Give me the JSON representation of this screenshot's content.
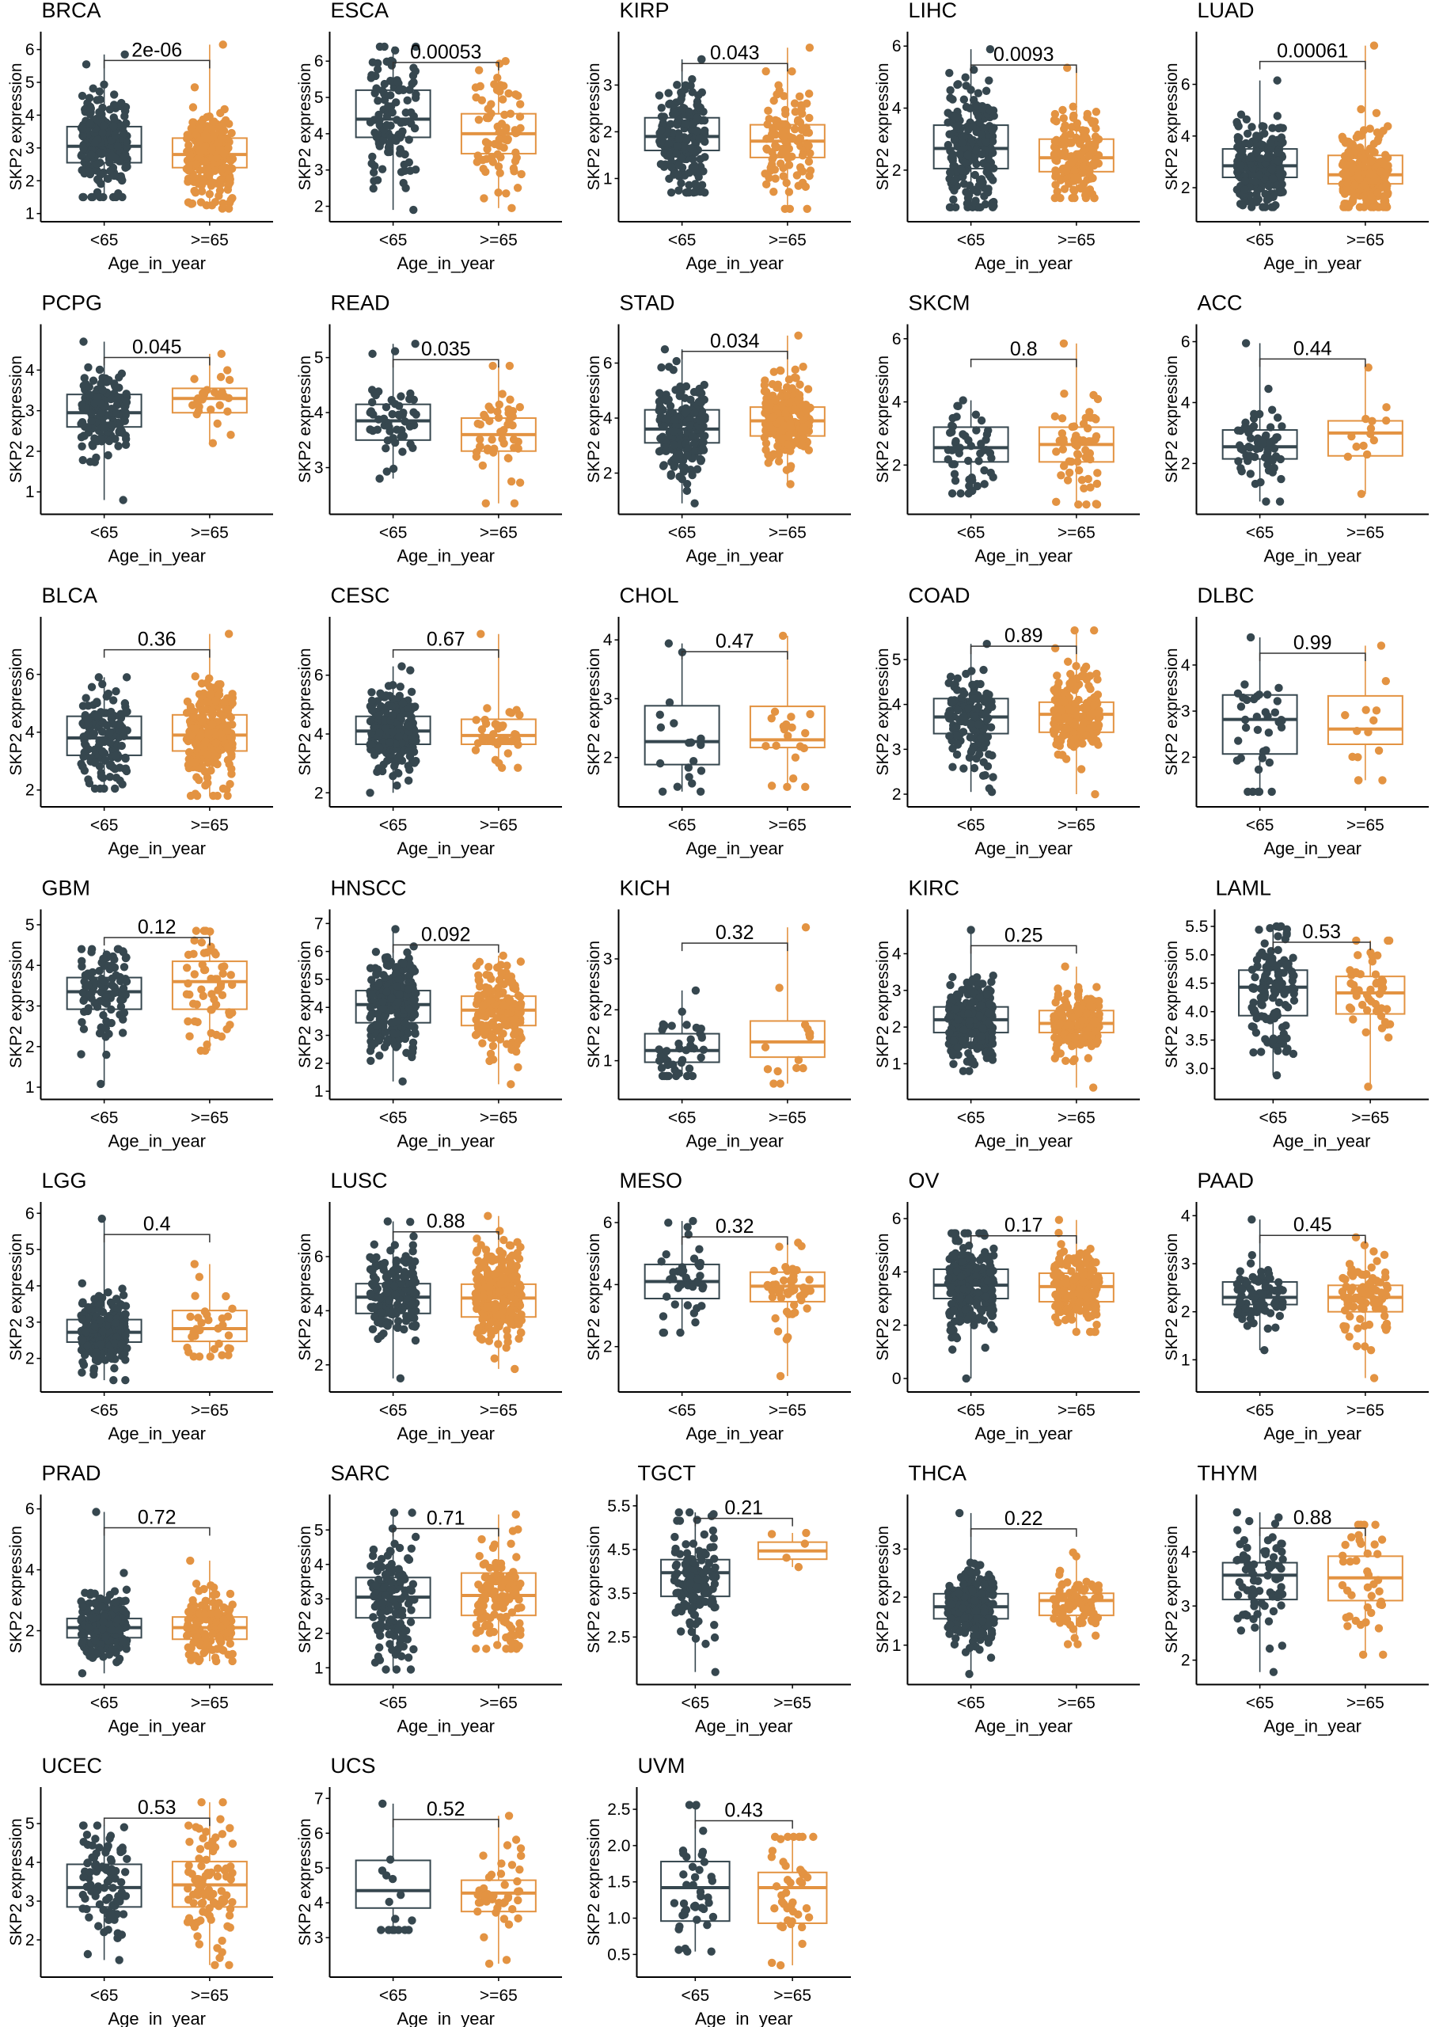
{
  "figure": {
    "ylabel": "SKP2 expression",
    "xlabel": "Age_in_year",
    "groups": [
      "<65",
      ">=65"
    ],
    "colors": {
      "<65": "#36474f",
      ">=65": "#e39342"
    }
  },
  "chart_data": [
    {
      "type": "box",
      "title": "BRCA",
      "pvalue": "2e-06",
      "ylim": [
        1,
        6.2
      ],
      "ticks": [
        1,
        2,
        3,
        4,
        5,
        6
      ],
      "groups": [
        {
          "name": "<65",
          "n": 600,
          "q1": 2.55,
          "median": 3.05,
          "q3": 3.65,
          "lo": 1.5,
          "hi": 5.85
        },
        {
          "name": ">=65",
          "n": 300,
          "q1": 2.4,
          "median": 2.8,
          "q3": 3.3,
          "lo": 1.15,
          "hi": 6.15
        }
      ]
    },
    {
      "type": "box",
      "title": "ESCA",
      "pvalue": "0.00053",
      "ylim": [
        1.8,
        6.5
      ],
      "ticks": [
        2,
        3,
        4,
        5,
        6
      ],
      "groups": [
        {
          "name": "<65",
          "n": 110,
          "q1": 3.9,
          "median": 4.4,
          "q3": 5.2,
          "lo": 1.9,
          "hi": 6.4
        },
        {
          "name": ">=65",
          "n": 70,
          "q1": 3.45,
          "median": 4.0,
          "q3": 4.55,
          "lo": 1.95,
          "hi": 6.0
        }
      ]
    },
    {
      "type": "box",
      "title": "KIRP",
      "pvalue": "0.043",
      "ylim": [
        0.25,
        3.9
      ],
      "ticks": [
        1,
        2,
        3
      ],
      "groups": [
        {
          "name": "<65",
          "n": 200,
          "q1": 1.6,
          "median": 1.9,
          "q3": 2.3,
          "lo": 0.7,
          "hi": 3.55
        },
        {
          "name": ">=65",
          "n": 110,
          "q1": 1.45,
          "median": 1.8,
          "q3": 2.15,
          "lo": 0.35,
          "hi": 3.8
        }
      ]
    },
    {
      "type": "box",
      "title": "LIHC",
      "pvalue": "0.0093",
      "ylim": [
        0.6,
        6.1
      ],
      "ticks": [
        2,
        4,
        6
      ],
      "groups": [
        {
          "name": "<65",
          "n": 230,
          "q1": 2.05,
          "median": 2.7,
          "q3": 3.45,
          "lo": 0.8,
          "hi": 5.9
        },
        {
          "name": ">=65",
          "n": 140,
          "q1": 1.95,
          "median": 2.4,
          "q3": 3.0,
          "lo": 1.1,
          "hi": 5.3
        }
      ]
    },
    {
      "type": "box",
      "title": "LUAD",
      "pvalue": "0.00061",
      "ylim": [
        1.0,
        7.6
      ],
      "ticks": [
        2,
        4,
        6
      ],
      "groups": [
        {
          "name": "<65",
          "n": 230,
          "q1": 2.4,
          "median": 2.85,
          "q3": 3.5,
          "lo": 1.25,
          "hi": 6.15
        },
        {
          "name": ">=65",
          "n": 280,
          "q1": 2.15,
          "median": 2.5,
          "q3": 3.25,
          "lo": 1.25,
          "hi": 7.5
        }
      ]
    },
    {
      "type": "box",
      "title": "PCPG",
      "pvalue": "0.045",
      "ylim": [
        0.65,
        4.85
      ],
      "ticks": [
        1,
        2,
        3,
        4
      ],
      "groups": [
        {
          "name": "<65",
          "n": 150,
          "q1": 2.6,
          "median": 2.95,
          "q3": 3.4,
          "lo": 0.8,
          "hi": 4.7
        },
        {
          "name": ">=65",
          "n": 25,
          "q1": 2.95,
          "median": 3.3,
          "q3": 3.55,
          "lo": 2.2,
          "hi": 4.4
        }
      ]
    },
    {
      "type": "box",
      "title": "READ",
      "pvalue": "0.035",
      "ylim": [
        2.3,
        5.4
      ],
      "ticks": [
        3,
        4,
        5
      ],
      "groups": [
        {
          "name": "<65",
          "n": 50,
          "q1": 3.5,
          "median": 3.85,
          "q3": 4.15,
          "lo": 2.8,
          "hi": 5.25
        },
        {
          "name": ">=65",
          "n": 45,
          "q1": 3.3,
          "median": 3.6,
          "q3": 3.9,
          "lo": 2.35,
          "hi": 4.85
        }
      ]
    },
    {
      "type": "box",
      "title": "STAD",
      "pvalue": "0.034",
      "ylim": [
        0.8,
        7.0
      ],
      "ticks": [
        2,
        4,
        6
      ],
      "groups": [
        {
          "name": "<65",
          "n": 200,
          "q1": 3.1,
          "median": 3.6,
          "q3": 4.3,
          "lo": 0.9,
          "hi": 6.5
        },
        {
          "name": ">=65",
          "n": 230,
          "q1": 3.35,
          "median": 3.9,
          "q3": 4.4,
          "lo": 1.6,
          "hi": 7.0
        }
      ]
    },
    {
      "type": "box",
      "title": "SKCM",
      "pvalue": "0.8",
      "ylim": [
        0.7,
        6.1
      ],
      "ticks": [
        2,
        4,
        6
      ],
      "groups": [
        {
          "name": "<65",
          "n": 50,
          "q1": 2.1,
          "median": 2.55,
          "q3": 3.2,
          "lo": 1.1,
          "hi": 4.05
        },
        {
          "name": ">=65",
          "n": 55,
          "q1": 2.1,
          "median": 2.65,
          "q3": 3.2,
          "lo": 0.75,
          "hi": 5.85
        }
      ]
    },
    {
      "type": "box",
      "title": "ACC",
      "pvalue": "0.44",
      "ylim": [
        0.6,
        6.2
      ],
      "ticks": [
        2,
        4,
        6
      ],
      "groups": [
        {
          "name": "<65",
          "n": 65,
          "q1": 2.15,
          "median": 2.55,
          "q3": 3.1,
          "lo": 0.75,
          "hi": 5.95
        },
        {
          "name": ">=65",
          "n": 12,
          "q1": 2.25,
          "median": 3.0,
          "q3": 3.4,
          "lo": 1.0,
          "hi": 5.15
        }
      ]
    },
    {
      "type": "box",
      "title": "BLCA",
      "pvalue": "0.36",
      "ylim": [
        1.7,
        7.6
      ],
      "ticks": [
        2,
        4,
        6
      ],
      "groups": [
        {
          "name": "<65",
          "n": 140,
          "q1": 3.2,
          "median": 3.8,
          "q3": 4.55,
          "lo": 2.05,
          "hi": 5.9
        },
        {
          "name": ">=65",
          "n": 250,
          "q1": 3.35,
          "median": 3.9,
          "q3": 4.6,
          "lo": 1.8,
          "hi": 7.4
        }
      ]
    },
    {
      "type": "box",
      "title": "CESC",
      "pvalue": "0.67",
      "ylim": [
        1.8,
        7.6
      ],
      "ticks": [
        2,
        4,
        6
      ],
      "groups": [
        {
          "name": "<65",
          "n": 250,
          "q1": 3.65,
          "median": 4.1,
          "q3": 4.6,
          "lo": 2.0,
          "hi": 6.3
        },
        {
          "name": ">=65",
          "n": 35,
          "q1": 3.65,
          "median": 3.95,
          "q3": 4.5,
          "lo": 2.85,
          "hi": 7.4
        }
      ]
    },
    {
      "type": "box",
      "title": "CHOL",
      "pvalue": "0.47",
      "ylim": [
        1.3,
        4.2
      ],
      "ticks": [
        2,
        3,
        4
      ],
      "groups": [
        {
          "name": "<65",
          "n": 17,
          "q1": 1.88,
          "median": 2.27,
          "q3": 2.88,
          "lo": 1.42,
          "hi": 3.94
        },
        {
          "name": ">=65",
          "n": 18,
          "q1": 2.17,
          "median": 2.3,
          "q3": 2.87,
          "lo": 1.5,
          "hi": 4.07
        }
      ]
    },
    {
      "type": "box",
      "title": "COAD",
      "pvalue": "0.89",
      "ylim": [
        1.9,
        5.7
      ],
      "ticks": [
        2,
        3,
        4,
        5
      ],
      "groups": [
        {
          "name": "<65",
          "n": 150,
          "q1": 3.35,
          "median": 3.72,
          "q3": 4.13,
          "lo": 2.05,
          "hi": 5.35
        },
        {
          "name": ">=65",
          "n": 190,
          "q1": 3.38,
          "median": 3.78,
          "q3": 4.05,
          "lo": 2.0,
          "hi": 5.65
        }
      ]
    },
    {
      "type": "box",
      "title": "DLBC",
      "pvalue": "0.99",
      "ylim": [
        1.1,
        4.8
      ],
      "ticks": [
        2,
        3,
        4
      ],
      "groups": [
        {
          "name": "<65",
          "n": 35,
          "q1": 2.07,
          "median": 2.82,
          "q3": 3.35,
          "lo": 1.25,
          "hi": 4.6
        },
        {
          "name": ">=65",
          "n": 12,
          "q1": 2.28,
          "median": 2.61,
          "q3": 3.33,
          "lo": 1.5,
          "hi": 4.42
        }
      ]
    },
    {
      "type": "box",
      "title": "GBM",
      "pvalue": "0.12",
      "ylim": [
        0.9,
        5.1
      ],
      "ticks": [
        1,
        2,
        3,
        4,
        5
      ],
      "groups": [
        {
          "name": "<65",
          "n": 100,
          "q1": 2.92,
          "median": 3.35,
          "q3": 3.7,
          "lo": 1.08,
          "hi": 4.4
        },
        {
          "name": ">=65",
          "n": 55,
          "q1": 2.92,
          "median": 3.6,
          "q3": 4.1,
          "lo": 1.9,
          "hi": 4.85
        }
      ]
    },
    {
      "type": "box",
      "title": "HNSCC",
      "pvalue": "0.092",
      "ylim": [
        1.0,
        7.1
      ],
      "ticks": [
        1,
        2,
        3,
        4,
        5,
        6,
        7
      ],
      "groups": [
        {
          "name": "<65",
          "n": 330,
          "q1": 3.45,
          "median": 4.1,
          "q3": 4.6,
          "lo": 1.35,
          "hi": 6.8
        },
        {
          "name": ">=65",
          "n": 180,
          "q1": 3.35,
          "median": 3.9,
          "q3": 4.4,
          "lo": 1.25,
          "hi": 5.85
        }
      ]
    },
    {
      "type": "box",
      "title": "KICH",
      "pvalue": "0.32",
      "ylim": [
        0.4,
        3.75
      ],
      "ticks": [
        1,
        2,
        3
      ],
      "groups": [
        {
          "name": "<65",
          "n": 45,
          "q1": 0.97,
          "median": 1.2,
          "q3": 1.53,
          "lo": 0.7,
          "hi": 2.38
        },
        {
          "name": ">=65",
          "n": 13,
          "q1": 1.07,
          "median": 1.37,
          "q3": 1.78,
          "lo": 0.55,
          "hi": 3.62
        }
      ]
    },
    {
      "type": "box",
      "title": "KIRC",
      "pvalue": "0.25",
      "ylim": [
        0.25,
        4.9
      ],
      "ticks": [
        1,
        2,
        3,
        4
      ],
      "groups": [
        {
          "name": "<65",
          "n": 380,
          "q1": 1.85,
          "median": 2.2,
          "q3": 2.55,
          "lo": 0.8,
          "hi": 4.65
        },
        {
          "name": ">=65",
          "n": 170,
          "q1": 1.85,
          "median": 2.1,
          "q3": 2.45,
          "lo": 0.35,
          "hi": 3.65
        }
      ]
    },
    {
      "type": "box",
      "title": "LAML",
      "pvalue": "0.53",
      "ylim": [
        2.6,
        5.6
      ],
      "ticks": [
        3.0,
        3.5,
        4.0,
        4.5,
        5.0,
        5.5
      ],
      "groups": [
        {
          "name": "<65",
          "n": 125,
          "q1": 3.93,
          "median": 4.43,
          "q3": 4.73,
          "lo": 2.88,
          "hi": 5.5
        },
        {
          "name": ">=65",
          "n": 45,
          "q1": 3.96,
          "median": 4.33,
          "q3": 4.62,
          "lo": 2.68,
          "hi": 5.25
        }
      ]
    },
    {
      "type": "box",
      "title": "LGG",
      "pvalue": "0.4",
      "ylim": [
        1.3,
        6.0
      ],
      "ticks": [
        2,
        3,
        4,
        5,
        6
      ],
      "groups": [
        {
          "name": "<65",
          "n": 480,
          "q1": 2.45,
          "median": 2.72,
          "q3": 3.07,
          "lo": 1.4,
          "hi": 5.85
        },
        {
          "name": ">=65",
          "n": 30,
          "q1": 2.47,
          "median": 2.82,
          "q3": 3.32,
          "lo": 2.05,
          "hi": 4.6
        }
      ]
    },
    {
      "type": "box",
      "title": "LUSC",
      "pvalue": "0.88",
      "ylim": [
        1.3,
        7.6
      ],
      "ticks": [
        2,
        4,
        6
      ],
      "groups": [
        {
          "name": "<65",
          "n": 170,
          "q1": 3.9,
          "median": 4.5,
          "q3": 5.0,
          "lo": 1.5,
          "hi": 7.3
        },
        {
          "name": ">=65",
          "n": 330,
          "q1": 3.77,
          "median": 4.47,
          "q3": 4.98,
          "lo": 1.85,
          "hi": 7.5
        }
      ]
    },
    {
      "type": "box",
      "title": "MESO",
      "pvalue": "0.32",
      "ylim": [
        0.8,
        6.3
      ],
      "ticks": [
        2,
        4,
        6
      ],
      "groups": [
        {
          "name": "<65",
          "n": 40,
          "q1": 3.55,
          "median": 4.1,
          "q3": 4.65,
          "lo": 2.45,
          "hi": 6.05
        },
        {
          "name": ">=65",
          "n": 45,
          "q1": 3.45,
          "median": 3.95,
          "q3": 4.4,
          "lo": 1.05,
          "hi": 5.35
        }
      ]
    },
    {
      "type": "box",
      "title": "OV",
      "pvalue": "0.17",
      "ylim": [
        -0.2,
        6.2
      ],
      "ticks": [
        0,
        2,
        4,
        6
      ],
      "groups": [
        {
          "name": "<65",
          "n": 300,
          "q1": 3.0,
          "median": 3.5,
          "q3": 4.1,
          "lo": 0.0,
          "hi": 5.45
        },
        {
          "name": ">=65",
          "n": 170,
          "q1": 2.88,
          "median": 3.45,
          "q3": 3.95,
          "lo": 1.75,
          "hi": 5.95
        }
      ]
    },
    {
      "type": "box",
      "title": "PAAD",
      "pvalue": "0.45",
      "ylim": [
        0.5,
        4.05
      ],
      "ticks": [
        1,
        2,
        3,
        4
      ],
      "groups": [
        {
          "name": "<65",
          "n": 90,
          "q1": 2.15,
          "median": 2.3,
          "q3": 2.62,
          "lo": 1.2,
          "hi": 3.92
        },
        {
          "name": ">=65",
          "n": 90,
          "q1": 2.0,
          "median": 2.3,
          "q3": 2.55,
          "lo": 0.62,
          "hi": 3.55
        }
      ]
    },
    {
      "type": "box",
      "title": "PRAD",
      "pvalue": "0.72",
      "ylim": [
        0.5,
        6.1
      ],
      "ticks": [
        2,
        4,
        6
      ],
      "groups": [
        {
          "name": "<65",
          "n": 380,
          "q1": 1.77,
          "median": 2.1,
          "q3": 2.4,
          "lo": 0.6,
          "hi": 5.9
        },
        {
          "name": ">=65",
          "n": 150,
          "q1": 1.72,
          "median": 2.1,
          "q3": 2.45,
          "lo": 1.0,
          "hi": 4.3
        }
      ]
    },
    {
      "type": "box",
      "title": "SARC",
      "pvalue": "0.71",
      "ylim": [
        0.75,
        5.7
      ],
      "ticks": [
        1,
        2,
        3,
        4,
        5
      ],
      "groups": [
        {
          "name": "<65",
          "n": 140,
          "q1": 2.45,
          "median": 3.05,
          "q3": 3.62,
          "lo": 0.95,
          "hi": 5.5
        },
        {
          "name": ">=65",
          "n": 120,
          "q1": 2.52,
          "median": 3.1,
          "q3": 3.75,
          "lo": 1.55,
          "hi": 5.45
        }
      ]
    },
    {
      "type": "box",
      "title": "TGCT",
      "pvalue": "0.21",
      "ylim": [
        1.6,
        5.5
      ],
      "ticks": [
        2.5,
        3.5,
        4.5,
        5.5
      ],
      "groups": [
        {
          "name": "<65",
          "n": 130,
          "q1": 3.43,
          "median": 3.97,
          "q3": 4.27,
          "lo": 1.7,
          "hi": 5.35
        },
        {
          "name": ">=65",
          "n": 3,
          "q1": 4.28,
          "median": 4.47,
          "q3": 4.67,
          "lo": 4.1,
          "hi": 4.88
        }
      ]
    },
    {
      "type": "box",
      "title": "THCA",
      "pvalue": "0.22",
      "ylim": [
        0.35,
        3.9
      ],
      "ticks": [
        1,
        2,
        3
      ],
      "groups": [
        {
          "name": "<65",
          "n": 420,
          "q1": 1.55,
          "median": 1.8,
          "q3": 2.07,
          "lo": 0.4,
          "hi": 3.75
        },
        {
          "name": ">=65",
          "n": 80,
          "q1": 1.62,
          "median": 1.93,
          "q3": 2.08,
          "lo": 1.02,
          "hi": 2.93
        }
      ]
    },
    {
      "type": "box",
      "title": "THYM",
      "pvalue": "0.88",
      "ylim": [
        1.7,
        4.85
      ],
      "ticks": [
        2,
        3,
        4
      ],
      "groups": [
        {
          "name": "<65",
          "n": 75,
          "q1": 3.12,
          "median": 3.57,
          "q3": 3.8,
          "lo": 1.78,
          "hi": 4.73
        },
        {
          "name": ">=65",
          "n": 40,
          "q1": 3.1,
          "median": 3.52,
          "q3": 3.92,
          "lo": 2.1,
          "hi": 4.5
        }
      ]
    },
    {
      "type": "box",
      "title": "UCEC",
      "pvalue": "0.53",
      "ylim": [
        1.25,
        5.65
      ],
      "ticks": [
        2,
        3,
        4,
        5
      ],
      "groups": [
        {
          "name": "<65",
          "n": 90,
          "q1": 2.85,
          "median": 3.35,
          "q3": 3.95,
          "lo": 1.48,
          "hi": 4.95
        },
        {
          "name": ">=65",
          "n": 90,
          "q1": 2.85,
          "median": 3.42,
          "q3": 4.02,
          "lo": 1.35,
          "hi": 5.55
        }
      ]
    },
    {
      "type": "box",
      "title": "UCS",
      "pvalue": "0.52",
      "ylim": [
        2.1,
        7.0
      ],
      "ticks": [
        3,
        4,
        5,
        6,
        7
      ],
      "groups": [
        {
          "name": "<65",
          "n": 14,
          "q1": 3.85,
          "median": 4.35,
          "q3": 5.22,
          "lo": 3.22,
          "hi": 6.85
        },
        {
          "name": ">=65",
          "n": 40,
          "q1": 3.75,
          "median": 4.28,
          "q3": 4.65,
          "lo": 2.25,
          "hi": 6.5
        }
      ]
    },
    {
      "type": "box",
      "title": "UVM",
      "pvalue": "0.43",
      "ylim": [
        0.3,
        2.65
      ],
      "ticks": [
        0.5,
        1.0,
        1.5,
        2.0,
        2.5
      ],
      "groups": [
        {
          "name": "<65",
          "n": 40,
          "q1": 0.96,
          "median": 1.42,
          "q3": 1.78,
          "lo": 0.54,
          "hi": 2.56
        },
        {
          "name": ">=65",
          "n": 40,
          "q1": 0.93,
          "median": 1.42,
          "q3": 1.63,
          "lo": 0.35,
          "hi": 2.12
        }
      ]
    }
  ]
}
